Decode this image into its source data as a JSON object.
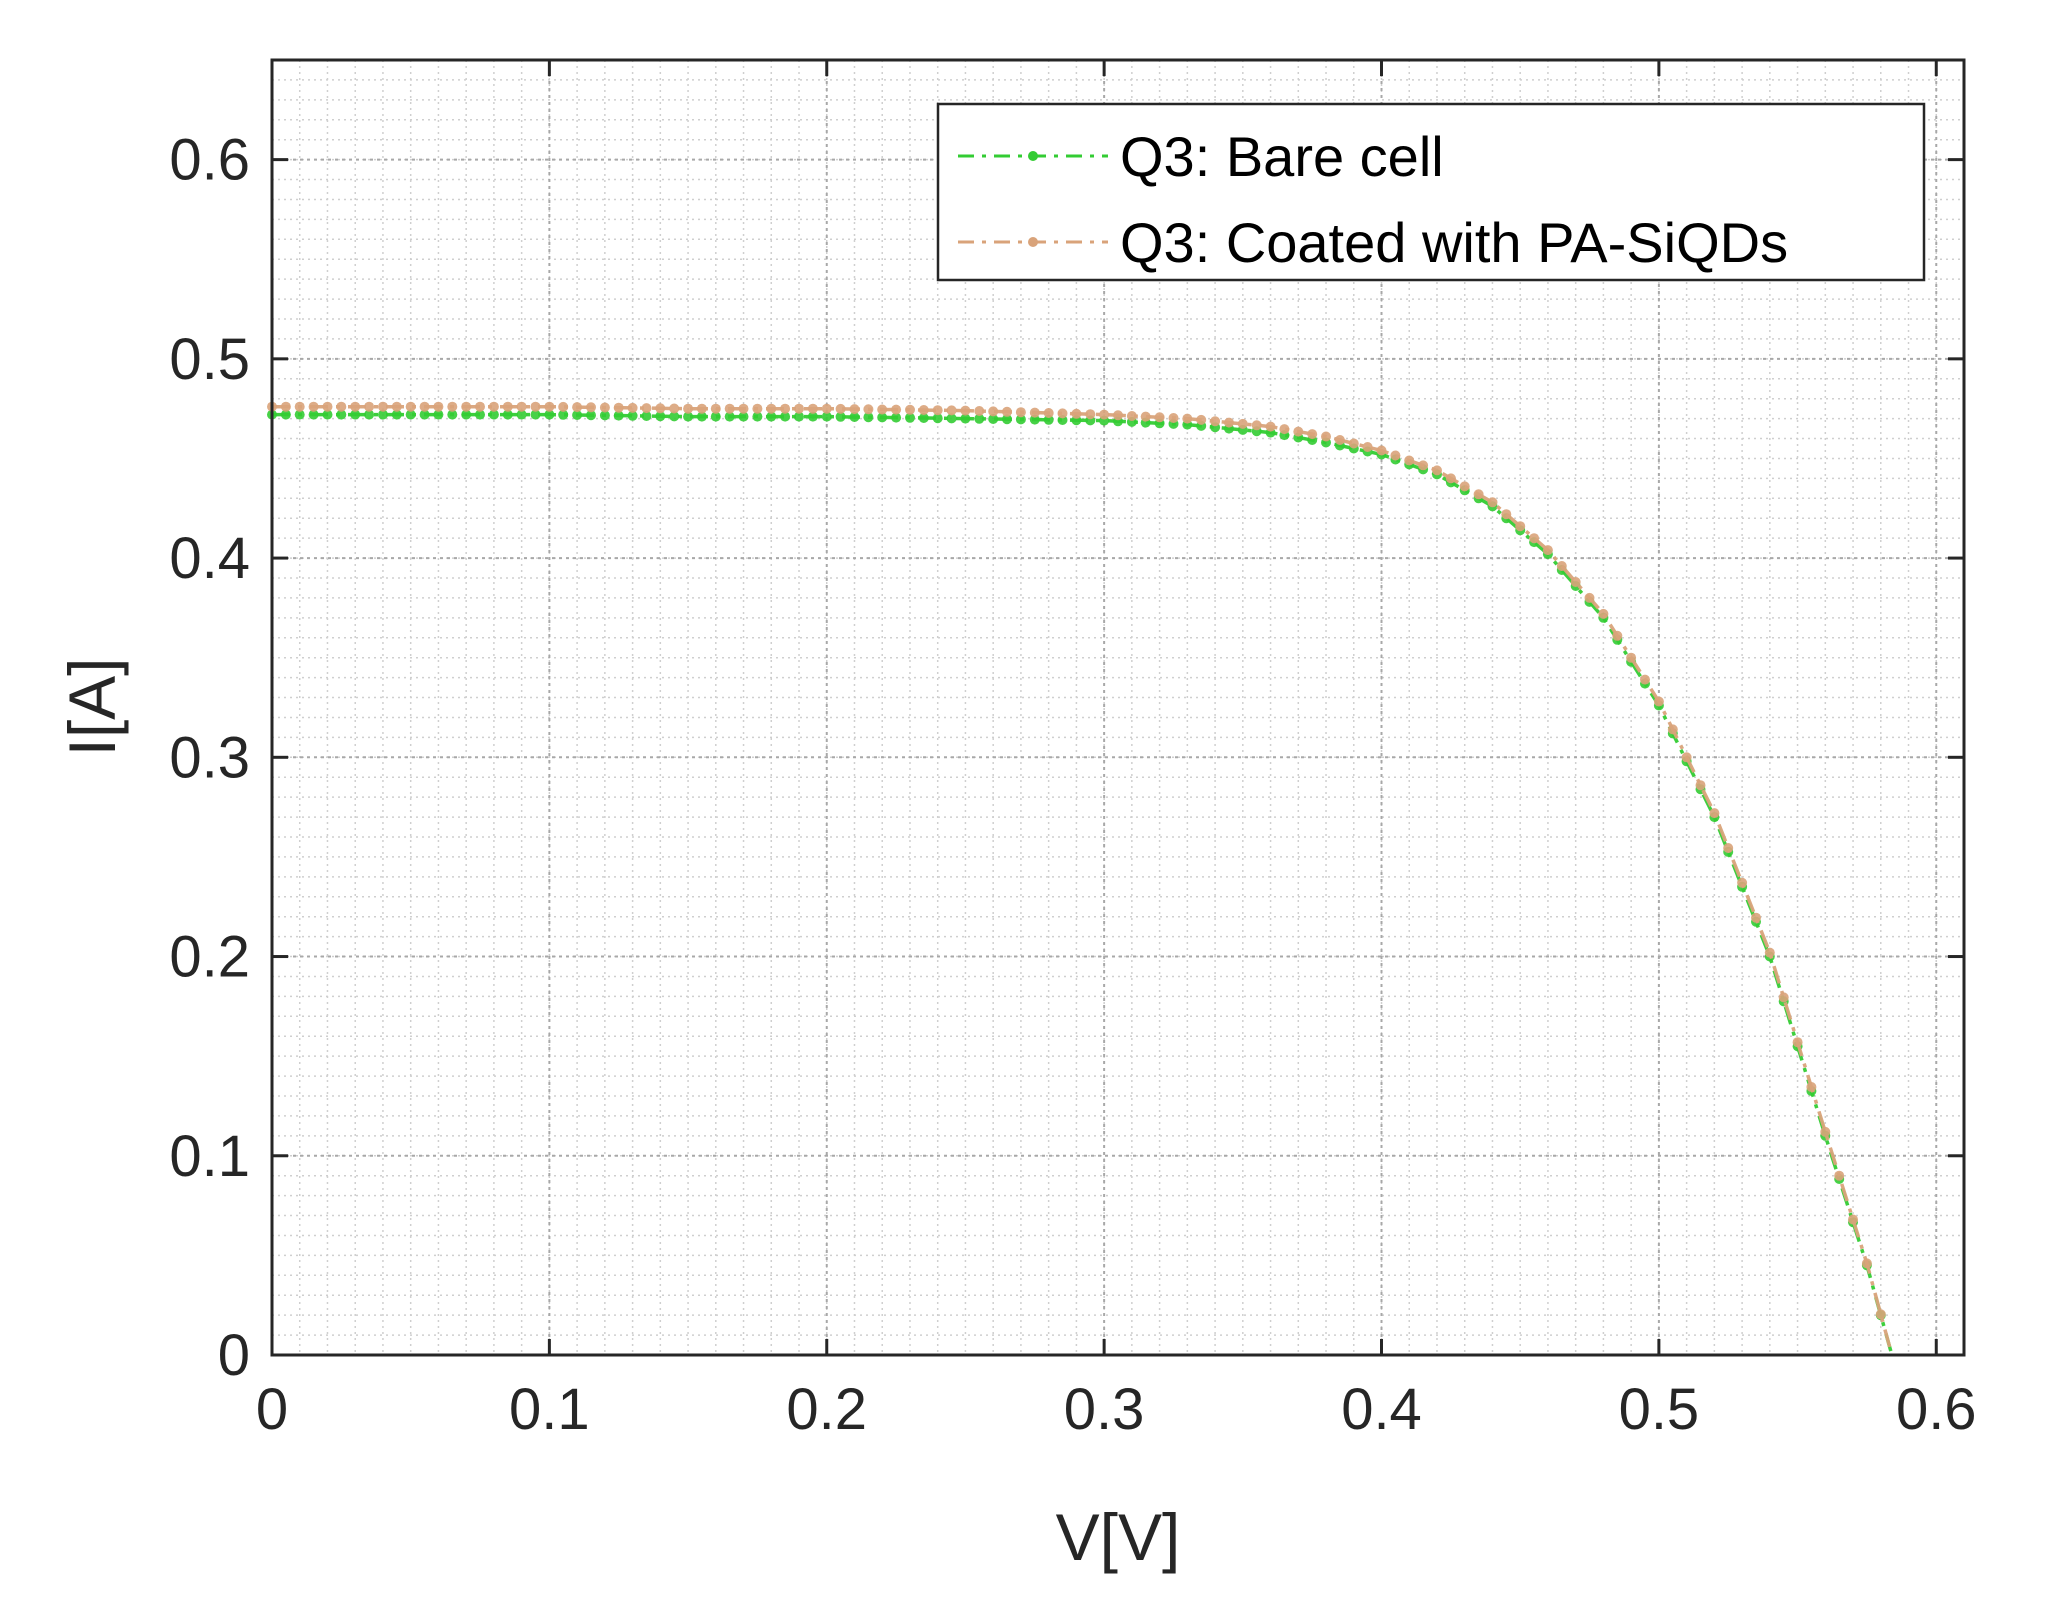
{
  "chart_data": {
    "type": "line",
    "title": "",
    "xlabel": "V[V]",
    "ylabel": "I[A]",
    "xlim": [
      0,
      0.61
    ],
    "ylim": [
      0,
      0.65
    ],
    "xticks": [
      0,
      0.1,
      0.2,
      0.3,
      0.4,
      0.5,
      0.6
    ],
    "xtick_labels": [
      "0",
      "0.1",
      "0.2",
      "0.3",
      "0.4",
      "0.5",
      "0.6"
    ],
    "yticks": [
      0,
      0.1,
      0.2,
      0.3,
      0.4,
      0.5,
      0.6
    ],
    "ytick_labels": [
      "0",
      "0.1",
      "0.2",
      "0.3",
      "0.4",
      "0.5",
      "0.6"
    ],
    "grid": true,
    "minor_grid": true,
    "legend_position": "top-right",
    "series": [
      {
        "name": "Q3: Bare cell",
        "color": "#33cc33",
        "line_style": "dash-dot",
        "marker": "dot",
        "x": [
          0,
          0.05,
          0.1,
          0.15,
          0.2,
          0.25,
          0.3,
          0.33,
          0.36,
          0.38,
          0.4,
          0.42,
          0.44,
          0.46,
          0.48,
          0.5,
          0.52,
          0.54,
          0.56,
          0.575,
          0.584
        ],
        "y": [
          0.472,
          0.472,
          0.472,
          0.471,
          0.471,
          0.47,
          0.469,
          0.467,
          0.463,
          0.458,
          0.452,
          0.442,
          0.426,
          0.402,
          0.37,
          0.326,
          0.27,
          0.2,
          0.11,
          0.045,
          0.0
        ]
      },
      {
        "name": "Q3: Coated with PA-SiQDs",
        "color": "#d9a37a",
        "line_style": "dash-dot",
        "marker": "dot",
        "x": [
          0,
          0.05,
          0.1,
          0.15,
          0.2,
          0.25,
          0.3,
          0.33,
          0.36,
          0.38,
          0.4,
          0.42,
          0.44,
          0.46,
          0.48,
          0.5,
          0.52,
          0.54,
          0.56,
          0.575,
          0.584
        ],
        "y": [
          0.476,
          0.476,
          0.476,
          0.475,
          0.475,
          0.474,
          0.472,
          0.47,
          0.466,
          0.461,
          0.454,
          0.444,
          0.428,
          0.404,
          0.372,
          0.328,
          0.272,
          0.202,
          0.112,
          0.046,
          0.0
        ]
      }
    ]
  }
}
